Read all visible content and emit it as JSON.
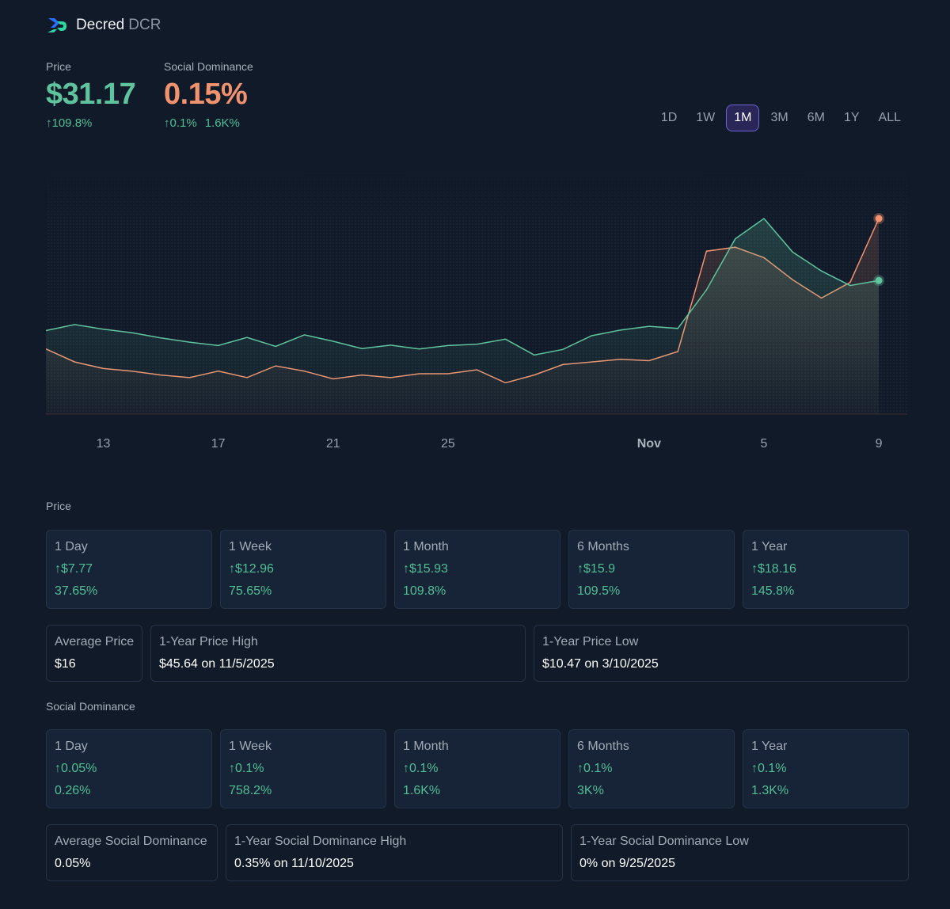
{
  "header": {
    "name": "Decred",
    "ticker": "DCR"
  },
  "metrics": {
    "price": {
      "label": "Price",
      "value": "$31.17",
      "change": "↑109.8%"
    },
    "social": {
      "label": "Social Dominance",
      "value": "0.15%",
      "change1": "↑0.1%",
      "change2": "1.6K%"
    }
  },
  "ranges": [
    "1D",
    "1W",
    "1M",
    "3M",
    "6M",
    "1Y",
    "ALL"
  ],
  "active_range": "1M",
  "colors": {
    "price": "#5fc49e",
    "social": "#f29370",
    "accent": "#6b63d6",
    "positive": "#4fbf95"
  },
  "chart_data": {
    "type": "line",
    "x_tick_labels": [
      "13",
      "17",
      "21",
      "25",
      "Nov",
      "5",
      "9"
    ],
    "x": [
      "Oct 11",
      "Oct 12",
      "Oct 13",
      "Oct 14",
      "Oct 15",
      "Oct 16",
      "Oct 17",
      "Oct 18",
      "Oct 19",
      "Oct 20",
      "Oct 21",
      "Oct 22",
      "Oct 23",
      "Oct 24",
      "Oct 25",
      "Oct 26",
      "Oct 27",
      "Oct 28",
      "Oct 29",
      "Oct 30",
      "Oct 31",
      "Nov 1",
      "Nov 2",
      "Nov 3",
      "Nov 4",
      "Nov 5",
      "Nov 6",
      "Nov 7",
      "Nov 8",
      "Nov 9"
    ],
    "series": [
      {
        "key": "price",
        "values": [
          19.5,
          20.9,
          19.8,
          19.0,
          17.8,
          16.8,
          16.0,
          17.9,
          15.8,
          18.5,
          17.0,
          15.3,
          16.1,
          15.2,
          16.0,
          16.3,
          17.5,
          13.8,
          15.1,
          18.3,
          19.6,
          20.5,
          20.0,
          29.0,
          40.9,
          45.64,
          37.8,
          33.4,
          30.0,
          31.17
        ]
      },
      {
        "key": "social",
        "values": [
          0.05,
          0.04,
          0.035,
          0.033,
          0.03,
          0.028,
          0.033,
          0.028,
          0.037,
          0.033,
          0.027,
          0.03,
          0.028,
          0.031,
          0.031,
          0.034,
          0.024,
          0.03,
          0.038,
          0.04,
          0.042,
          0.041,
          0.048,
          0.125,
          0.128,
          0.12,
          0.103,
          0.089,
          0.101,
          0.15
        ]
      }
    ]
  },
  "price_section": {
    "title": "Price",
    "cards": [
      {
        "label": "1 Day",
        "change": "↑$7.77",
        "pct": "37.65%"
      },
      {
        "label": "1 Week",
        "change": "↑$12.96",
        "pct": "75.65%"
      },
      {
        "label": "1 Month",
        "change": "↑$15.93",
        "pct": "109.8%"
      },
      {
        "label": "6 Months",
        "change": "↑$15.9",
        "pct": "109.5%"
      },
      {
        "label": "1 Year",
        "change": "↑$18.16",
        "pct": "145.8%"
      }
    ],
    "stats": [
      {
        "label": "Average Price",
        "value": "$16"
      },
      {
        "label": "1-Year Price High",
        "value": "$45.64 on 11/5/2025"
      },
      {
        "label": "1-Year Price Low",
        "value": "$10.47 on 3/10/2025"
      }
    ]
  },
  "social_section": {
    "title": "Social Dominance",
    "cards": [
      {
        "label": "1 Day",
        "change": "↑0.05%",
        "pct": "0.26%"
      },
      {
        "label": "1 Week",
        "change": "↑0.1%",
        "pct": "758.2%"
      },
      {
        "label": "1 Month",
        "change": "↑0.1%",
        "pct": "1.6K%"
      },
      {
        "label": "6 Months",
        "change": "↑0.1%",
        "pct": "3K%"
      },
      {
        "label": "1 Year",
        "change": "↑0.1%",
        "pct": "1.3K%"
      }
    ],
    "stats": [
      {
        "label": "Average Social Dominance",
        "value": "0.05%"
      },
      {
        "label": "1-Year Social Dominance High",
        "value": "0.35% on 11/10/2025"
      },
      {
        "label": "1-Year Social Dominance Low",
        "value": "0% on 9/25/2025"
      }
    ]
  }
}
